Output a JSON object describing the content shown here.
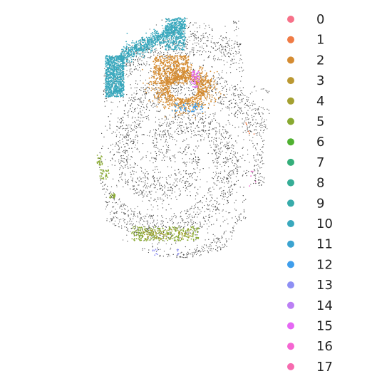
{
  "chart_data": {
    "type": "scatter",
    "title": "",
    "xlabel": "",
    "ylabel": "",
    "grid": false,
    "axes_visible": false,
    "legend_placement": "right",
    "background_points_color": "#555555",
    "series": [
      {
        "name": "0",
        "color": "#f77189"
      },
      {
        "name": "1",
        "color": "#f07b45"
      },
      {
        "name": "2",
        "color": "#d58c32"
      },
      {
        "name": "3",
        "color": "#bb9832"
      },
      {
        "name": "4",
        "color": "#a4a031"
      },
      {
        "name": "5",
        "color": "#88a931"
      },
      {
        "name": "6",
        "color": "#50b131"
      },
      {
        "name": "7",
        "color": "#34ae7a"
      },
      {
        "name": "8",
        "color": "#36ad96"
      },
      {
        "name": "9",
        "color": "#37abaa"
      },
      {
        "name": "10",
        "color": "#39a8bd"
      },
      {
        "name": "11",
        "color": "#3ba3d0"
      },
      {
        "name": "12",
        "color": "#3f9eec"
      },
      {
        "name": "13",
        "color": "#8e8ff4"
      },
      {
        "name": "14",
        "color": "#bb7ff4"
      },
      {
        "name": "15",
        "color": "#e568f4"
      },
      {
        "name": "16",
        "color": "#f566d2"
      },
      {
        "name": "17",
        "color": "#f66baf"
      }
    ]
  }
}
